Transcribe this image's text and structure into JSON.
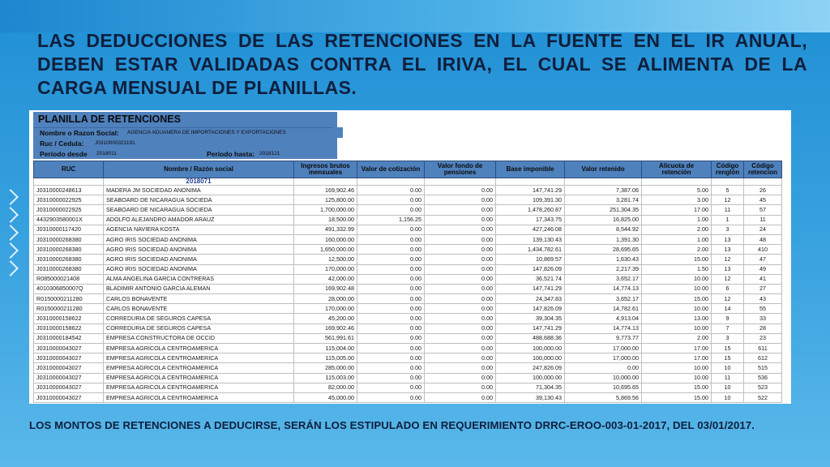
{
  "slide": {
    "title": "LAS DEDUCCIONES DE LAS RETENCIONES EN LA FUENTE EN EL IR ANUAL, DEBEN ESTAR VALIDADAS CONTRA EL IRIVA, EL CUAL SE ALIMENTA DE LA CARGA MENSUAL DE PLANILLAS.",
    "footer": "LOS MONTOS DE RETENCIONES A DEDUCIRSE, SERÁN LOS ESTIPULADO EN REQUERIMIENTO DRRC-EROO-003-01-2017, DEL 03/01/2017."
  },
  "planilla": {
    "title": "PLANILLA DE RETENCIONES",
    "name_label": "Nombre o Razon Social:",
    "name_value": "AGENCIA ADUANERA DE IMPORTACIONES Y EXPORTACIONES",
    "ruc_label": "Ruc / Cedula:",
    "ruc_value": "J0310000321191",
    "period_from_label": "Período desde",
    "period_from_value": "2018011",
    "period_to_label": "Período hasta:",
    "period_to_value": "2018121",
    "subheader_period": "2018071",
    "columns": [
      "RUC",
      "Nombre / Razón social",
      "Ingresos brutos mensuales",
      "Valor de cotización",
      "Valor fondo de pensiones",
      "Base imponible",
      "Valor retenido",
      "Alícuota de retención",
      "Código renglón",
      "Código retencion"
    ],
    "rows": [
      [
        "J0310000248613",
        "MADERA JM SOCIEDAD ANONIMA",
        "169,902.46",
        "0.00",
        "0.00",
        "147,741.29",
        "7,387.06",
        "5.00",
        "5",
        "26"
      ],
      [
        "J0310000022925",
        "SEABOARD DE NICARAGUA SOCIEDA",
        "125,800.00",
        "0.00",
        "0.00",
        "109,391.30",
        "3,281.74",
        "3.00",
        "12",
        "45"
      ],
      [
        "J0310000022925",
        "SEABOARD DE NICARAGUA SOCIEDA",
        "1,700,000.00",
        "0.00",
        "0.00",
        "1,478,260.87",
        "251,304.35",
        "17.00",
        "11",
        "57"
      ],
      [
        "4432903580001X",
        "ADOLFO ALEJANDRO AMADOR ARAUZ",
        "18,500.00",
        "1,156.25",
        "0.00",
        "17,343.75",
        "16,825.00",
        "1.00",
        "1",
        "11"
      ],
      [
        "J0310000117420",
        "AGENCIA NAVIERA KOSTA",
        "491,332.99",
        "0.00",
        "0.00",
        "427,246.08",
        "8,544.92",
        "2.00",
        "3",
        "24"
      ],
      [
        "J0310000268380",
        "AGRO IRIS SOCIEDAD ANONIMA",
        "160,000.00",
        "0.00",
        "0.00",
        "139,130.43",
        "1,391.30",
        "1.00",
        "13",
        "48"
      ],
      [
        "J0310000268380",
        "AGRO IRIS SOCIEDAD ANONIMA",
        "1,650,000.00",
        "0.00",
        "0.00",
        "1,434,782.61",
        "28,695.65",
        "2.00",
        "13",
        "410"
      ],
      [
        "J0310000268380",
        "AGRO IRIS SOCIEDAD ANONIMA",
        "12,500.00",
        "0.00",
        "0.00",
        "10,869.57",
        "1,630.43",
        "15.00",
        "12",
        "47"
      ],
      [
        "J0310000268380",
        "AGRO IRIS SOCIEDAD ANONIMA",
        "170,000.00",
        "0.00",
        "0.00",
        "147,826.09",
        "2,217.39",
        "1.50",
        "13",
        "49"
      ],
      [
        "R085000021408",
        "ALMA ANGELINA GARCIA CONTRERAS",
        "42,000.00",
        "0.00",
        "0.00",
        "36,521.74",
        "3,652.17",
        "10.00",
        "12",
        "41"
      ],
      [
        "4010306850007Q",
        "BLADIMIR ANTONIO GARCIA ALEMAN",
        "169,902.48",
        "0.00",
        "0.00",
        "147,741.29",
        "14,774.13",
        "10.00",
        "6",
        "27"
      ],
      [
        "R0150000211280",
        "CARLOS BONAVENTE",
        "28,000.00",
        "0.00",
        "0.00",
        "24,347.83",
        "3,652.17",
        "15.00",
        "12",
        "43"
      ],
      [
        "R0150000211280",
        "CARLOS BONAVENTE",
        "170,000.00",
        "0.00",
        "0.00",
        "147,826.09",
        "14,782.61",
        "10.00",
        "14",
        "55"
      ],
      [
        "J0310000158622",
        "CORREDURIA DE SEGUROS CAPESA",
        "45,200.00",
        "0.00",
        "0.00",
        "39,304.35",
        "4,913.04",
        "13.00",
        "9",
        "33"
      ],
      [
        "J0310000158622",
        "CORREDURIA DE SEGUROS CAPESA",
        "169,902.46",
        "0.00",
        "0.00",
        "147,741.29",
        "14,774.13",
        "10.00",
        "7",
        "28"
      ],
      [
        "J0310000184542",
        "EMPRESA CONSTRUCTORA DE OCCID",
        "561,991.61",
        "0.00",
        "0.00",
        "488,688.36",
        "9,773.77",
        "2.00",
        "3",
        "23"
      ],
      [
        "J0310000043027",
        "EMPRESA AGRICOLA CENTROAMERICA",
        "115,004.00",
        "0.00",
        "0.00",
        "100,000.00",
        "17,000.00",
        "17.00",
        "15",
        "611"
      ],
      [
        "J0310000043027",
        "EMPRESA AGRICOLA CENTROAMERICA",
        "115,005.00",
        "0.00",
        "0.00",
        "100,000.00",
        "17,000.00",
        "17.00",
        "15",
        "612"
      ],
      [
        "J0310000043027",
        "EMPRESA AGRICOLA CENTROAMERICA",
        "285,000.00",
        "0.00",
        "0.00",
        "247,826.09",
        "0.00",
        "10.00",
        "10",
        "515"
      ],
      [
        "J0310000043027",
        "EMPRESA AGRICOLA CENTROAMERICA",
        "115,003.00",
        "0.00",
        "0.00",
        "100,000.00",
        "10,000.00",
        "10.00",
        "11",
        "536"
      ],
      [
        "J0310000043027",
        "EMPRESA AGRICOLA CENTROAMERICA",
        "82,000.00",
        "0.00",
        "0.00",
        "71,304.35",
        "10,695.65",
        "15.00",
        "10",
        "523"
      ],
      [
        "J0310000043027",
        "EMPRESA AGRICOLA CENTROAMERICA",
        "45,000.00",
        "0.00",
        "0.00",
        "39,130.43",
        "5,869.56",
        "15.00",
        "10",
        "522"
      ]
    ]
  }
}
